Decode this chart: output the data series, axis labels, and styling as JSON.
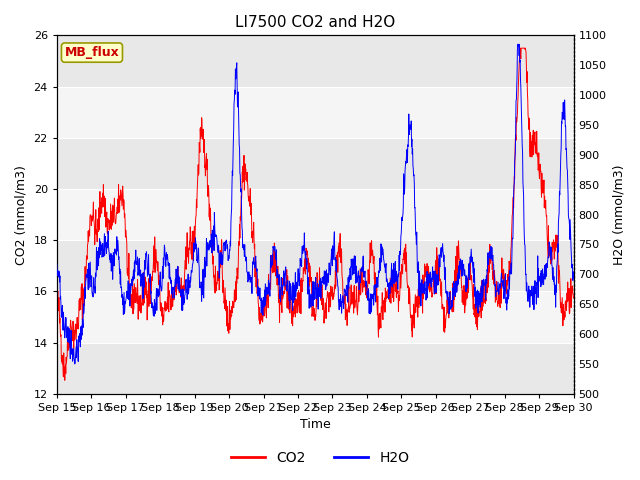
{
  "title": "LI7500 CO2 and H2O",
  "xlabel": "Time",
  "ylabel_left": "CO2 (mmol/m3)",
  "ylabel_right": "H2O (mmol/m3)",
  "ylim_left": [
    12,
    26
  ],
  "ylim_right": [
    500,
    1100
  ],
  "yticks_left": [
    12,
    14,
    16,
    18,
    20,
    22,
    24,
    26
  ],
  "yticks_right": [
    500,
    550,
    600,
    650,
    700,
    750,
    800,
    850,
    900,
    950,
    1000,
    1050,
    1100
  ],
  "xtick_labels": [
    "Sep 15",
    "Sep 16",
    "Sep 17",
    "Sep 18",
    "Sep 19",
    "Sep 20",
    "Sep 21",
    "Sep 22",
    "Sep 23",
    "Sep 24",
    "Sep 25",
    "Sep 26",
    "Sep 27",
    "Sep 28",
    "Sep 29",
    "Sep 30"
  ],
  "co2_color": "#FF0000",
  "h2o_color": "#0000FF",
  "background_color": "#ffffff",
  "plot_bg_color": "#e8e8e8",
  "band_color": "#f5f5f5",
  "annotation_text": "MB_flux",
  "annotation_bg": "#ffffcc",
  "annotation_border": "#999900",
  "annotation_text_color": "#cc0000",
  "title_fontsize": 11,
  "axis_label_fontsize": 9,
  "tick_fontsize": 8,
  "legend_fontsize": 10,
  "seed": 42
}
